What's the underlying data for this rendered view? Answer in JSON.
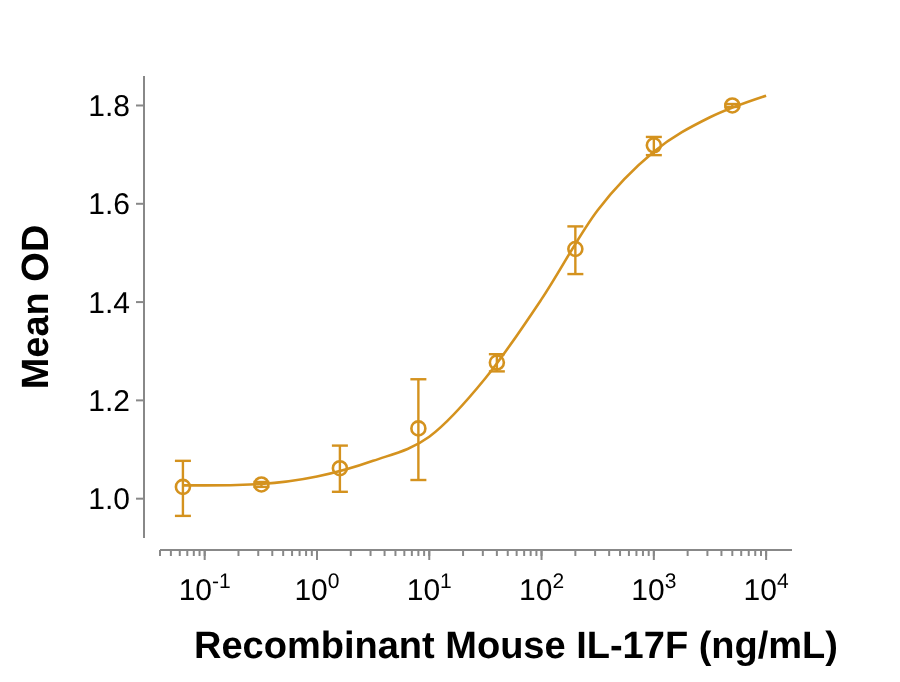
{
  "chart_data": {
    "type": "scatter",
    "xlabel": "Recombinant Mouse IL-17F (ng/mL)",
    "ylabel": "Mean OD",
    "log": "x",
    "xlim": [
      0.04,
      17000
    ],
    "ylim": [
      0.92,
      1.86
    ],
    "xticks": [
      {
        "value": 0.1,
        "label": "10$^{-1}$"
      },
      {
        "value": 1,
        "label": "10$^{0}$"
      },
      {
        "value": 10,
        "label": "10$^{1}$"
      },
      {
        "value": 100,
        "label": "10$^{2}$"
      },
      {
        "value": 1000,
        "label": "10$^{3}$"
      },
      {
        "value": 10000,
        "label": "10$^{4}$"
      }
    ],
    "yticks": [
      {
        "value": 1.0,
        "label": "1.0"
      },
      1.2,
      1.4,
      1.6,
      1.8
    ],
    "grid": false,
    "marker": "circle",
    "series": [
      {
        "color": "#d4921e",
        "x": [
          0.064,
          0.32,
          1.6,
          8,
          40,
          200,
          1000,
          5000
        ],
        "values": [
          1.024,
          1.029,
          1.062,
          1.143,
          1.277,
          1.508,
          1.719,
          1.8
        ],
        "errors": [
          [
            0.965,
            1.077
          ],
          [
            1.024,
            1.034
          ],
          [
            1.014,
            1.108
          ],
          [
            1.038,
            1.243
          ],
          [
            1.259,
            1.294
          ],
          [
            1.457,
            1.554
          ],
          [
            1.699,
            1.736
          ],
          [
            1.797,
            1.803
          ]
        ]
      },
      {
        "type": "line",
        "color": "#d4921e",
        "marker": "none",
        "x": [
          0.064,
          0.1,
          0.316,
          1,
          3.16,
          10,
          31.6,
          100,
          316,
          1000,
          3162,
          10000
        ],
        "values": [
          1.027,
          1.027,
          1.03,
          1.045,
          1.077,
          1.126,
          1.245,
          1.406,
          1.587,
          1.706,
          1.776,
          1.82
        ]
      }
    ]
  }
}
